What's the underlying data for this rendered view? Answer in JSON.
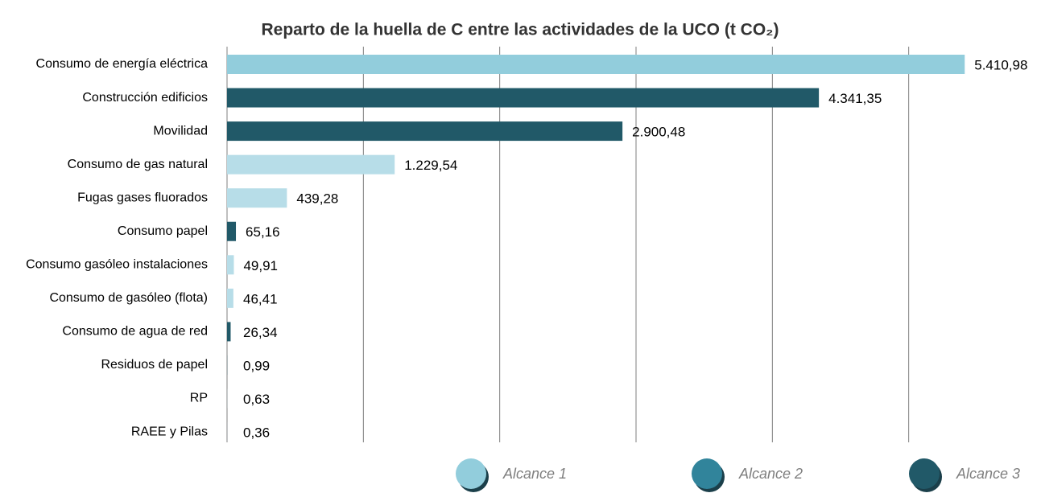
{
  "chart_data": {
    "type": "barh",
    "title": "Reparto de la huella de C entre las actividades de la UCO (t CO₂)",
    "categories": [
      "Consumo de energía eléctrica",
      "Construcción edificios",
      "Movilidad",
      "Consumo de gas natural",
      "Fugas gases fluorados",
      "Consumo papel",
      "Consumo gasóleo instalaciones",
      "Consumo de gasóleo (flota)",
      "Consumo de agua de red",
      "Residuos de papel",
      "RP",
      "RAEE y Pilas"
    ],
    "values": [
      5410.98,
      4341.35,
      2900.48,
      1229.54,
      439.28,
      65.16,
      49.91,
      46.41,
      26.34,
      0.99,
      0.63,
      0.36
    ],
    "value_labels": [
      "5.410,98",
      "4.341,35",
      "2.900,48",
      "1.229,54",
      "439,28",
      "65,16",
      "49,91",
      "46,41",
      "26,34",
      "0,99",
      "0,63",
      "0,36"
    ],
    "colors": [
      "#92cddc",
      "#215968",
      "#215968",
      "#b7dde8",
      "#b7dde8",
      "#215968",
      "#b7dde8",
      "#b7dde8",
      "#215968",
      "#215968",
      "#b7dde8",
      "#b7dde8"
    ],
    "xlim": [
      0,
      6000
    ],
    "xticks": [
      0,
      1000,
      2000,
      3000,
      4000,
      5000
    ],
    "grid": true,
    "legend": [
      {
        "name": "Alcance 1",
        "color": "#92cddc"
      },
      {
        "name": "Alcance 2",
        "color": "#31849b"
      },
      {
        "name": "Alcance 3",
        "color": "#215968"
      }
    ]
  }
}
